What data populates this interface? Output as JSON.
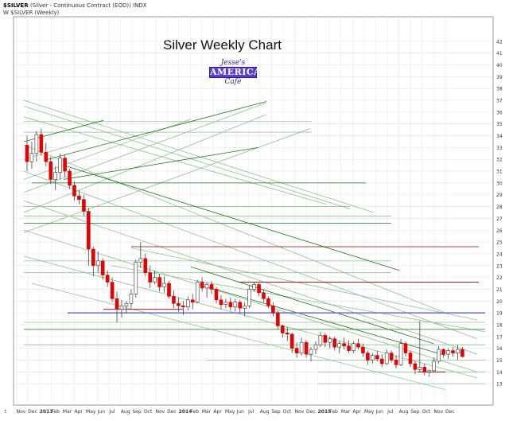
{
  "header": {
    "symbol": "$SILVER",
    "description": "(Silver - Continuous Contract (EOD)) INDX",
    "series_label": "$SILVER (Weekly)",
    "legend_marker": "W"
  },
  "logo": {
    "line1": "Jesse's",
    "line2": "AMERICAN",
    "line3": "Café"
  },
  "colors": {
    "up": "#ffffff",
    "down": "#e60000",
    "wick": "#444444",
    "line_green": "#1a7a1a",
    "line_lightgreen": "#8fbf8f",
    "line_darkred": "#8b0000",
    "line_blue": "#6b6bd8",
    "grid": "#e4e4e4"
  },
  "chart_data": {
    "type": "candlestick",
    "title": "Silver Weekly Chart",
    "ylim": [
      12,
      43
    ],
    "yticks": [
      13,
      14,
      15,
      16,
      17,
      18,
      19,
      20,
      21,
      22,
      23,
      24,
      25,
      26,
      27,
      28,
      29,
      30,
      31,
      32,
      33,
      34,
      35,
      36,
      37,
      38,
      39,
      40,
      41,
      42
    ],
    "xlabels": [
      "t",
      "Nov",
      "Dec",
      "2013",
      "Feb",
      "Mar",
      "Apr",
      "May",
      "Jun",
      "Jul",
      "Aug",
      "Sep",
      "Oct",
      "Nov",
      "Dec",
      "2014",
      "Feb",
      "Mar",
      "Apr",
      "May",
      "Jun",
      "Jul",
      "Aug",
      "Sep",
      "Oct",
      "Nov",
      "Dec",
      "2015",
      "Feb",
      "Mar",
      "Apr",
      "May",
      "Jun",
      "Jul",
      "Aug",
      "Sep",
      "Oct",
      "Nov",
      "Dec"
    ],
    "bold_xlabels": [
      "2013",
      "2014",
      "2015"
    ],
    "candles": [
      [
        33.2,
        34.0,
        31.0,
        31.8
      ],
      [
        31.8,
        33.5,
        31.2,
        32.5
      ],
      [
        32.5,
        34.4,
        31.8,
        34.1
      ],
      [
        34.1,
        34.6,
        32.3,
        32.6
      ],
      [
        32.6,
        33.4,
        31.4,
        31.8
      ],
      [
        31.8,
        32.2,
        29.9,
        30.3
      ],
      [
        30.3,
        31.4,
        29.4,
        30.9
      ],
      [
        30.9,
        32.5,
        30.3,
        32.1
      ],
      [
        32.1,
        32.4,
        30.5,
        31.0
      ],
      [
        31.0,
        31.2,
        29.5,
        29.8
      ],
      [
        29.8,
        30.1,
        28.5,
        28.9
      ],
      [
        28.9,
        29.4,
        28.2,
        28.6
      ],
      [
        28.6,
        29.0,
        27.2,
        27.6
      ],
      [
        27.6,
        27.9,
        23.0,
        24.4
      ],
      [
        24.4,
        24.6,
        22.1,
        23.0
      ],
      [
        23.0,
        24.2,
        22.4,
        23.4
      ],
      [
        23.4,
        23.6,
        21.8,
        22.2
      ],
      [
        22.2,
        22.6,
        21.2,
        21.6
      ],
      [
        21.6,
        22.0,
        19.9,
        20.2
      ],
      [
        20.2,
        20.8,
        18.2,
        19.3
      ],
      [
        19.3,
        20.1,
        18.6,
        19.6
      ],
      [
        19.6,
        20.0,
        19.0,
        19.8
      ],
      [
        19.8,
        21.0,
        19.4,
        20.6
      ],
      [
        20.6,
        23.5,
        20.3,
        23.3
      ],
      [
        23.3,
        25.0,
        22.8,
        23.6
      ],
      [
        23.6,
        24.0,
        22.1,
        22.4
      ],
      [
        22.4,
        23.0,
        21.1,
        21.6
      ],
      [
        21.6,
        22.6,
        21.4,
        22.0
      ],
      [
        22.0,
        22.3,
        20.8,
        21.2
      ],
      [
        21.2,
        22.1,
        20.7,
        21.5
      ],
      [
        21.5,
        21.7,
        20.2,
        20.4
      ],
      [
        20.4,
        20.9,
        19.4,
        19.8
      ],
      [
        19.8,
        20.3,
        19.1,
        19.6
      ],
      [
        19.6,
        20.0,
        18.8,
        19.5
      ],
      [
        19.5,
        20.4,
        19.2,
        20.1
      ],
      [
        20.1,
        20.6,
        19.3,
        19.9
      ],
      [
        19.9,
        21.8,
        19.8,
        21.6
      ],
      [
        21.6,
        22.0,
        20.8,
        21.1
      ],
      [
        21.1,
        21.6,
        20.3,
        21.4
      ],
      [
        21.4,
        21.7,
        20.6,
        21.0
      ],
      [
        21.0,
        21.2,
        19.8,
        20.1
      ],
      [
        20.1,
        20.5,
        19.3,
        19.7
      ],
      [
        19.7,
        20.2,
        19.4,
        19.9
      ],
      [
        19.9,
        20.3,
        19.2,
        19.5
      ],
      [
        19.5,
        20.2,
        19.1,
        19.9
      ],
      [
        19.9,
        20.1,
        19.0,
        19.4
      ],
      [
        19.4,
        19.9,
        18.7,
        19.6
      ],
      [
        19.6,
        21.3,
        19.4,
        21.0
      ],
      [
        21.0,
        21.6,
        20.8,
        21.4
      ],
      [
        21.4,
        21.5,
        20.4,
        20.7
      ],
      [
        20.7,
        21.0,
        19.9,
        20.2
      ],
      [
        20.2,
        20.4,
        19.4,
        19.6
      ],
      [
        19.6,
        19.9,
        18.7,
        19.0
      ],
      [
        19.0,
        19.2,
        17.6,
        17.9
      ],
      [
        17.9,
        18.0,
        16.9,
        17.3
      ],
      [
        17.3,
        17.8,
        16.6,
        17.2
      ],
      [
        17.2,
        17.3,
        15.6,
        16.0
      ],
      [
        16.0,
        16.5,
        15.2,
        15.6
      ],
      [
        15.6,
        16.9,
        15.4,
        16.5
      ],
      [
        16.5,
        16.7,
        15.2,
        15.5
      ],
      [
        15.5,
        16.1,
        14.9,
        15.9
      ],
      [
        15.9,
        16.6,
        15.5,
        16.3
      ],
      [
        16.3,
        17.4,
        16.1,
        17.1
      ],
      [
        17.1,
        17.3,
        16.1,
        16.5
      ],
      [
        16.5,
        17.0,
        16.0,
        16.8
      ],
      [
        16.8,
        17.0,
        15.8,
        16.1
      ],
      [
        16.1,
        16.6,
        15.6,
        16.4
      ],
      [
        16.4,
        16.9,
        15.9,
        16.2
      ],
      [
        16.2,
        16.7,
        15.6,
        15.8
      ],
      [
        15.8,
        16.6,
        15.6,
        16.4
      ],
      [
        16.4,
        16.8,
        15.9,
        16.1
      ],
      [
        16.1,
        16.4,
        15.3,
        15.6
      ],
      [
        15.6,
        15.8,
        14.6,
        15.0
      ],
      [
        15.0,
        15.6,
        14.7,
        15.4
      ],
      [
        15.4,
        15.8,
        14.9,
        15.1
      ],
      [
        15.1,
        15.5,
        14.4,
        14.7
      ],
      [
        14.7,
        15.9,
        14.6,
        15.6
      ],
      [
        15.6,
        15.8,
        14.8,
        15.0
      ],
      [
        15.0,
        15.4,
        14.3,
        14.6
      ],
      [
        14.6,
        16.8,
        14.5,
        16.4
      ],
      [
        16.4,
        16.6,
        15.3,
        15.6
      ],
      [
        15.6,
        15.8,
        14.4,
        14.7
      ],
      [
        14.7,
        14.9,
        13.8,
        14.2
      ],
      [
        14.2,
        18.3,
        14.0,
        14.4
      ],
      [
        14.4,
        14.7,
        13.7,
        14.0
      ],
      [
        14.0,
        14.2,
        13.6,
        14.1
      ],
      [
        14.1,
        15.2,
        14.0,
        14.9
      ],
      [
        14.9,
        16.2,
        14.7,
        15.9
      ],
      [
        15.9,
        16.0,
        15.2,
        15.5
      ],
      [
        15.5,
        16.0,
        15.1,
        15.8
      ],
      [
        15.8,
        16.1,
        15.3,
        15.6
      ],
      [
        15.6,
        16.3,
        15.0,
        15.9
      ],
      [
        15.9,
        16.1,
        15.2,
        15.3
      ]
    ],
    "grid": true
  }
}
